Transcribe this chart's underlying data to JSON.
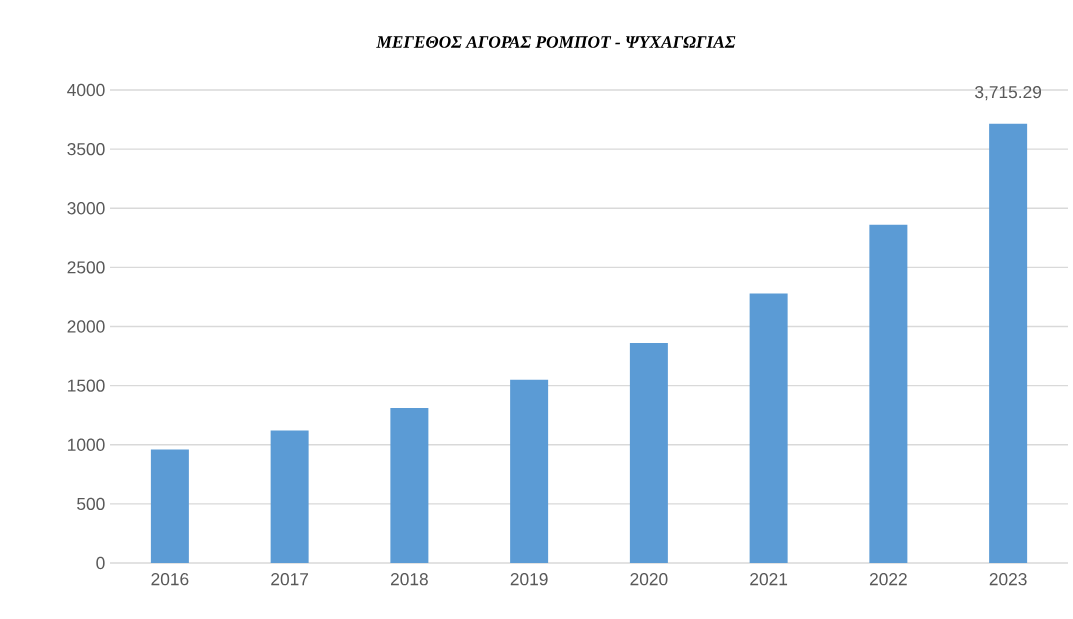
{
  "chart_data": {
    "type": "bar",
    "title": "ΜΕΓΕΘΟΣ ΑΓΟΡΑΣ ΡΟΜΠΟΤ - ΨΥΧΑΓΩΓΙΑΣ",
    "categories": [
      "2016",
      "2017",
      "2018",
      "2019",
      "2020",
      "2021",
      "2022",
      "2023"
    ],
    "values": [
      960,
      1120,
      1310,
      1550,
      1860,
      2280,
      2860,
      3715.29
    ],
    "value_labels": [
      null,
      null,
      null,
      null,
      null,
      null,
      null,
      "3,715.29"
    ],
    "color": "#5b9bd5",
    "ylim": [
      0,
      4000
    ],
    "yticks": [
      0,
      500,
      1000,
      1500,
      2000,
      2500,
      3000,
      3500,
      4000
    ],
    "grid": "y"
  }
}
